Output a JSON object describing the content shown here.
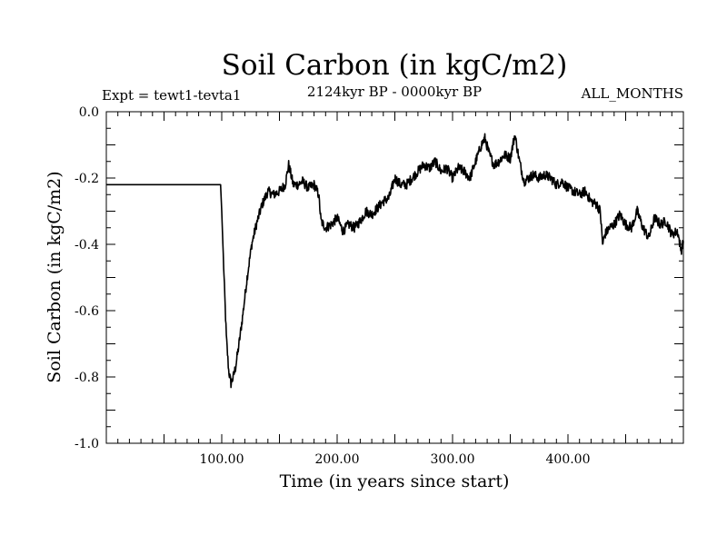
{
  "chart_data": {
    "type": "line",
    "title": "Soil Carbon (in kgC/m2)",
    "subtitle_left": "Expt = tewt1-tevta1",
    "subtitle_center": "2124kyr BP - 0000kyr BP",
    "subtitle_right": "ALL_MONTHS",
    "xlabel": "Time (in years since start)",
    "ylabel": "Soil Carbon (in kgC/m2)",
    "xlim": [
      0,
      500
    ],
    "ylim": [
      -1.0,
      0.0
    ],
    "x_ticks": [
      100,
      200,
      300,
      400
    ],
    "x_tick_labels": [
      "100.00",
      "200.00",
      "300.00",
      "400.00"
    ],
    "y_ticks": [
      0.0,
      -0.2,
      -0.4,
      -0.6,
      -0.8,
      -1.0
    ],
    "y_tick_labels": [
      "0.0",
      "-0.2",
      "-0.4",
      "-0.6",
      "-0.8",
      "-1.0"
    ],
    "grid": false,
    "series": [
      {
        "x": [
          0,
          50,
          99,
          100,
          102,
          104,
          106,
          108,
          110,
          112,
          115,
          118,
          122,
          126,
          130,
          135,
          140,
          145,
          150,
          155,
          158,
          162,
          166,
          170,
          175,
          180,
          184,
          186,
          190,
          195,
          200,
          205,
          210,
          215,
          220,
          225,
          230,
          235,
          240,
          245,
          250,
          255,
          260,
          265,
          270,
          275,
          280,
          285,
          290,
          295,
          300,
          305,
          310,
          315,
          320,
          325,
          328,
          332,
          336,
          340,
          345,
          350,
          354,
          358,
          362,
          366,
          370,
          375,
          380,
          385,
          390,
          395,
          400,
          405,
          410,
          415,
          420,
          425,
          428,
          430,
          432,
          436,
          440,
          445,
          450,
          455,
          460,
          465,
          470,
          475,
          480,
          485,
          490,
          495,
          498,
          500
        ],
        "y": [
          -0.22,
          -0.22,
          -0.22,
          -0.3,
          -0.5,
          -0.68,
          -0.78,
          -0.82,
          -0.8,
          -0.77,
          -0.7,
          -0.62,
          -0.5,
          -0.4,
          -0.34,
          -0.28,
          -0.24,
          -0.25,
          -0.24,
          -0.22,
          -0.16,
          -0.22,
          -0.22,
          -0.21,
          -0.23,
          -0.22,
          -0.25,
          -0.33,
          -0.35,
          -0.34,
          -0.32,
          -0.36,
          -0.34,
          -0.35,
          -0.33,
          -0.3,
          -0.31,
          -0.29,
          -0.27,
          -0.26,
          -0.2,
          -0.22,
          -0.22,
          -0.2,
          -0.18,
          -0.16,
          -0.17,
          -0.15,
          -0.18,
          -0.17,
          -0.2,
          -0.17,
          -0.18,
          -0.2,
          -0.15,
          -0.1,
          -0.08,
          -0.13,
          -0.16,
          -0.15,
          -0.13,
          -0.14,
          -0.07,
          -0.15,
          -0.21,
          -0.2,
          -0.19,
          -0.2,
          -0.19,
          -0.2,
          -0.22,
          -0.21,
          -0.23,
          -0.24,
          -0.25,
          -0.24,
          -0.27,
          -0.28,
          -0.3,
          -0.4,
          -0.37,
          -0.35,
          -0.34,
          -0.31,
          -0.34,
          -0.35,
          -0.3,
          -0.35,
          -0.38,
          -0.32,
          -0.34,
          -0.33,
          -0.37,
          -0.36,
          -0.42,
          -0.39
        ]
      }
    ]
  }
}
